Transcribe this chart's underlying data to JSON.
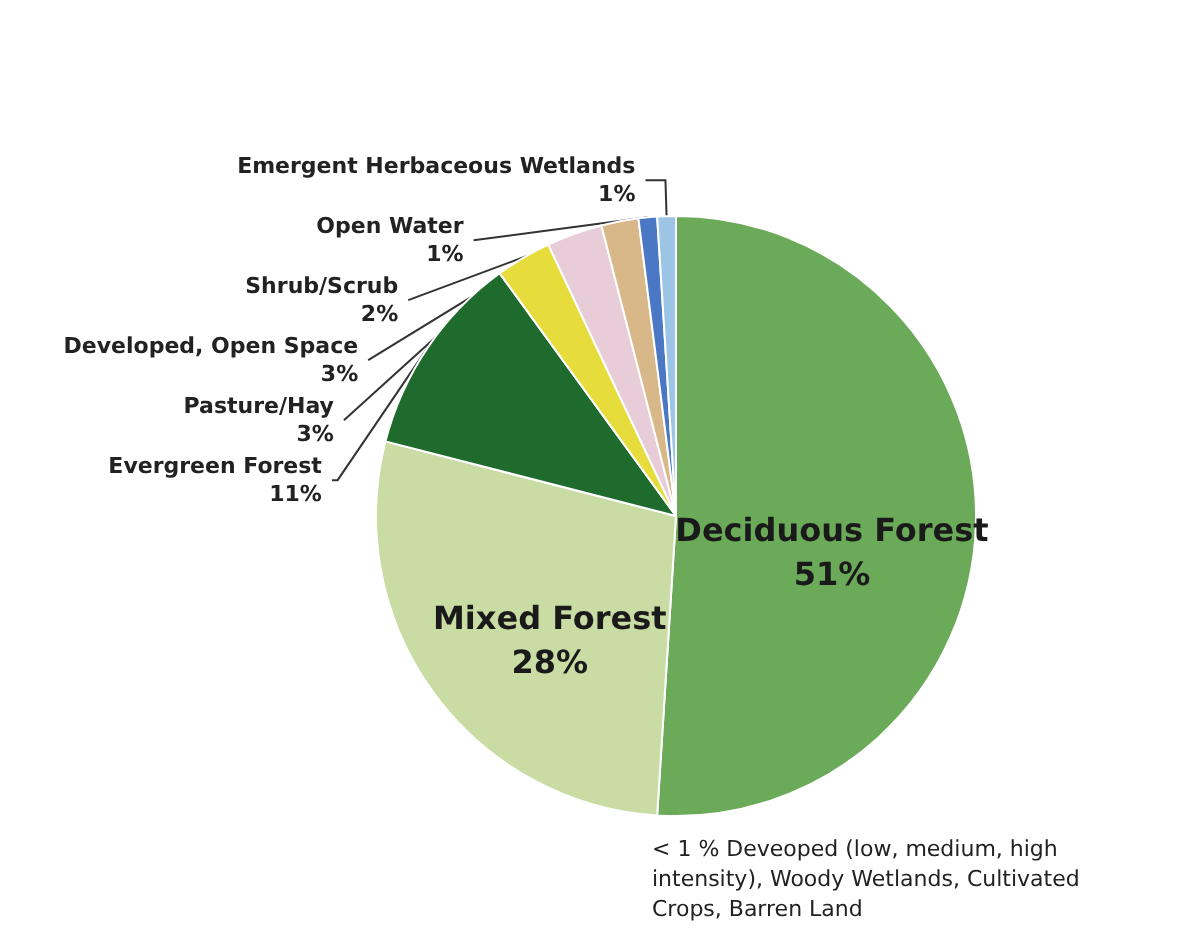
{
  "chart_data": {
    "type": "pie",
    "categories": [
      "Deciduous Forest",
      "Mixed Forest",
      "Evergreen Forest",
      "Pasture/Hay",
      "Developed, Open Space",
      "Shrub/Scrub",
      "Open Water",
      "Emergent Herbaceous Wetlands"
    ],
    "values": [
      51,
      28,
      11,
      3,
      3,
      2,
      1,
      1
    ],
    "value_labels": [
      "51%",
      "28%",
      "11%",
      "3%",
      "3%",
      "2%",
      "1%",
      "1%"
    ],
    "colors": [
      "#6aaa58",
      "#c8dca4",
      "#1f6b2e",
      "#e6dc3c",
      "#e8ccd8",
      "#d8b888",
      "#4a78c4",
      "#9cc4e4"
    ],
    "annotations": [
      "< 1 % Deveoped (low, medium, high intensity), Woody Wetlands, Cultivated Crops, Barren Land"
    ]
  }
}
